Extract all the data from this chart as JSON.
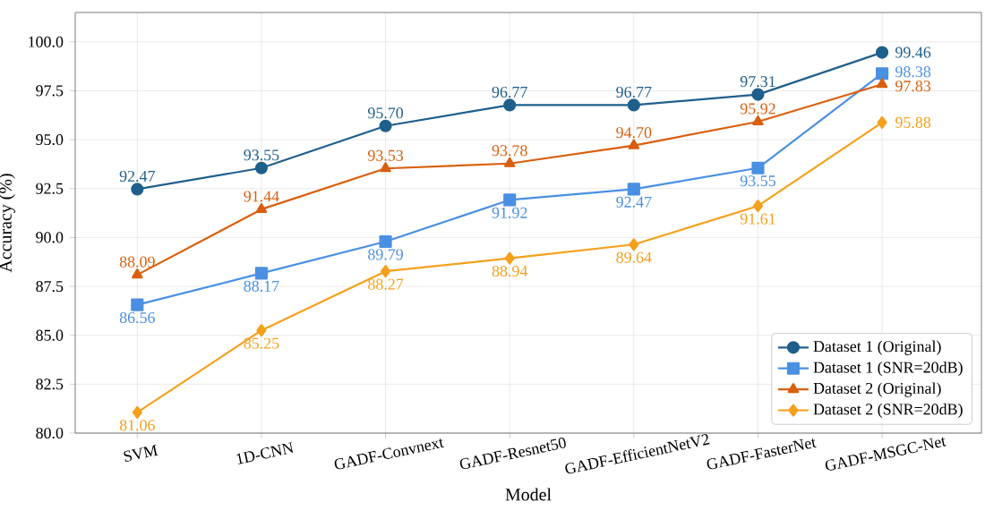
{
  "chart_data": {
    "type": "line",
    "xlabel": "Model",
    "ylabel": "Accuracy (%)",
    "categories": [
      "SVM",
      "1D-CNN",
      "GADF-Convnext",
      "GADF-Resnet50",
      "GADF-EfficientNetV2",
      "GADF-FasterNet",
      "GADF-MSGC-Net"
    ],
    "series": [
      {
        "name": "Dataset 1 (Original)",
        "color": "#1f5f8b",
        "marker": "circle",
        "values": [
          92.47,
          93.55,
          95.7,
          96.77,
          96.77,
          97.31,
          99.46
        ],
        "value_labels": [
          "92.47",
          "93.55",
          "95.70",
          "96.77",
          "96.77",
          "97.31",
          "99.46"
        ]
      },
      {
        "name": "Dataset 1 (SNR=20dB)",
        "color": "#4a90e2",
        "marker": "square",
        "values": [
          86.56,
          88.17,
          89.79,
          91.92,
          92.47,
          93.55,
          98.38
        ],
        "value_labels": [
          "86.56",
          "88.17",
          "89.79",
          "91.92",
          "92.47",
          "93.55",
          "98.38"
        ]
      },
      {
        "name": "Dataset 2 (Original)",
        "color": "#d95f0e",
        "marker": "triangle",
        "values": [
          88.09,
          91.44,
          93.53,
          93.78,
          94.7,
          95.92,
          97.83
        ],
        "value_labels": [
          "88.09",
          "91.44",
          "93.53",
          "93.78",
          "94.70",
          "95.92",
          "97.83"
        ]
      },
      {
        "name": "Dataset 2 (SNR=20dB)",
        "color": "#f5a01a",
        "marker": "diamond",
        "values": [
          81.06,
          85.25,
          88.27,
          88.94,
          89.64,
          91.61,
          95.88
        ],
        "value_labels": [
          "81.06",
          "85.25",
          "88.27",
          "88.94",
          "89.64",
          "91.61",
          "95.88"
        ]
      }
    ],
    "ylim": [
      80,
      101.5
    ],
    "yticks": [
      {
        "value": 80,
        "label": "80.0"
      },
      {
        "value": 82.5,
        "label": "82.5"
      },
      {
        "value": 85,
        "label": "85.0"
      },
      {
        "value": 87.5,
        "label": "87.5"
      },
      {
        "value": 90,
        "label": "90.0"
      },
      {
        "value": 92.5,
        "label": "92.5"
      },
      {
        "value": 95,
        "label": "95.0"
      },
      {
        "value": 97.5,
        "label": "97.5"
      },
      {
        "value": 100,
        "label": "100.0"
      }
    ],
    "grid": true,
    "legend": "bottom right",
    "line_style": "solid"
  }
}
